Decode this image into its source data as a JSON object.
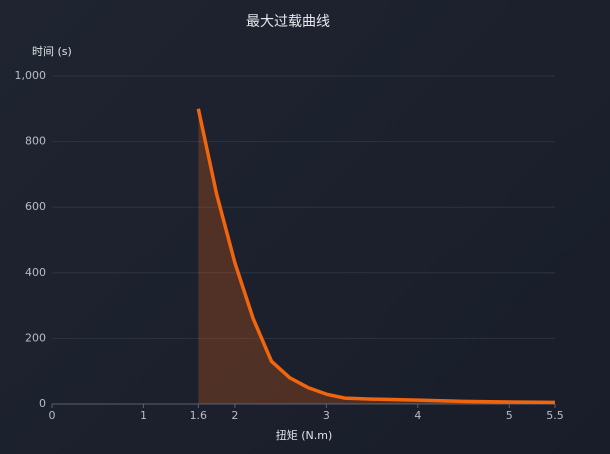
{
  "chart_data": {
    "type": "area",
    "title": "最大过载曲线",
    "y_label": "时间 (s)",
    "x_label": "扭矩 (N.m)",
    "color": "#f0650e",
    "grid": true,
    "series": [
      {
        "x": [
          1.6,
          1.8,
          2.0,
          2.2,
          2.4,
          2.6,
          2.8,
          3.0,
          3.2,
          3.5,
          4.0,
          4.5,
          5.0,
          5.5
        ],
        "values": [
          900,
          640,
          430,
          260,
          130,
          80,
          50,
          30,
          18,
          15,
          12,
          8,
          6,
          5
        ]
      }
    ],
    "xlim": [
      0,
      5.5
    ],
    "xticks": [
      0,
      1,
      1.6,
      2,
      3,
      4,
      5,
      5.5
    ],
    "ylim": [
      0,
      1000
    ],
    "yticks": [
      0,
      200,
      400,
      600,
      800,
      {
        "value": 1000,
        "label": "1,000"
      }
    ]
  }
}
